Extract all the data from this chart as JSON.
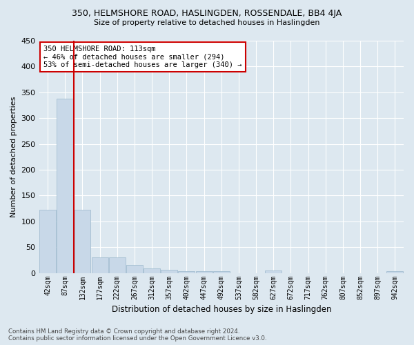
{
  "title": "350, HELMSHORE ROAD, HASLINGDEN, ROSSENDALE, BB4 4JA",
  "subtitle": "Size of property relative to detached houses in Haslingden",
  "xlabel": "Distribution of detached houses by size in Haslingden",
  "ylabel": "Number of detached properties",
  "bar_color": "#c8d8e8",
  "bar_edge_color": "#9ab8cc",
  "background_color": "#dde8f0",
  "plot_bg_color": "#dde8f0",
  "grid_color": "#ffffff",
  "tick_labels": [
    "42sqm",
    "87sqm",
    "132sqm",
    "177sqm",
    "222sqm",
    "267sqm",
    "312sqm",
    "357sqm",
    "402sqm",
    "447sqm",
    "492sqm",
    "537sqm",
    "582sqm",
    "627sqm",
    "672sqm",
    "717sqm",
    "762sqm",
    "807sqm",
    "852sqm",
    "897sqm",
    "942sqm"
  ],
  "bar_heights": [
    122,
    338,
    122,
    30,
    30,
    15,
    9,
    6,
    4,
    3,
    3,
    0,
    0,
    5,
    0,
    0,
    0,
    0,
    0,
    0,
    4
  ],
  "ylim": [
    0,
    450
  ],
  "yticks": [
    0,
    50,
    100,
    150,
    200,
    250,
    300,
    350,
    400,
    450
  ],
  "vline_x": 1.5,
  "annotation_text_line1": "350 HELMSHORE ROAD: 113sqm",
  "annotation_text_line2": "← 46% of detached houses are smaller (294)",
  "annotation_text_line3": "53% of semi-detached houses are larger (340) →",
  "annotation_box_color": "#ffffff",
  "annotation_border_color": "#cc0000",
  "vline_color": "#cc0000",
  "footer_line1": "Contains HM Land Registry data © Crown copyright and database right 2024.",
  "footer_line2": "Contains public sector information licensed under the Open Government Licence v3.0."
}
